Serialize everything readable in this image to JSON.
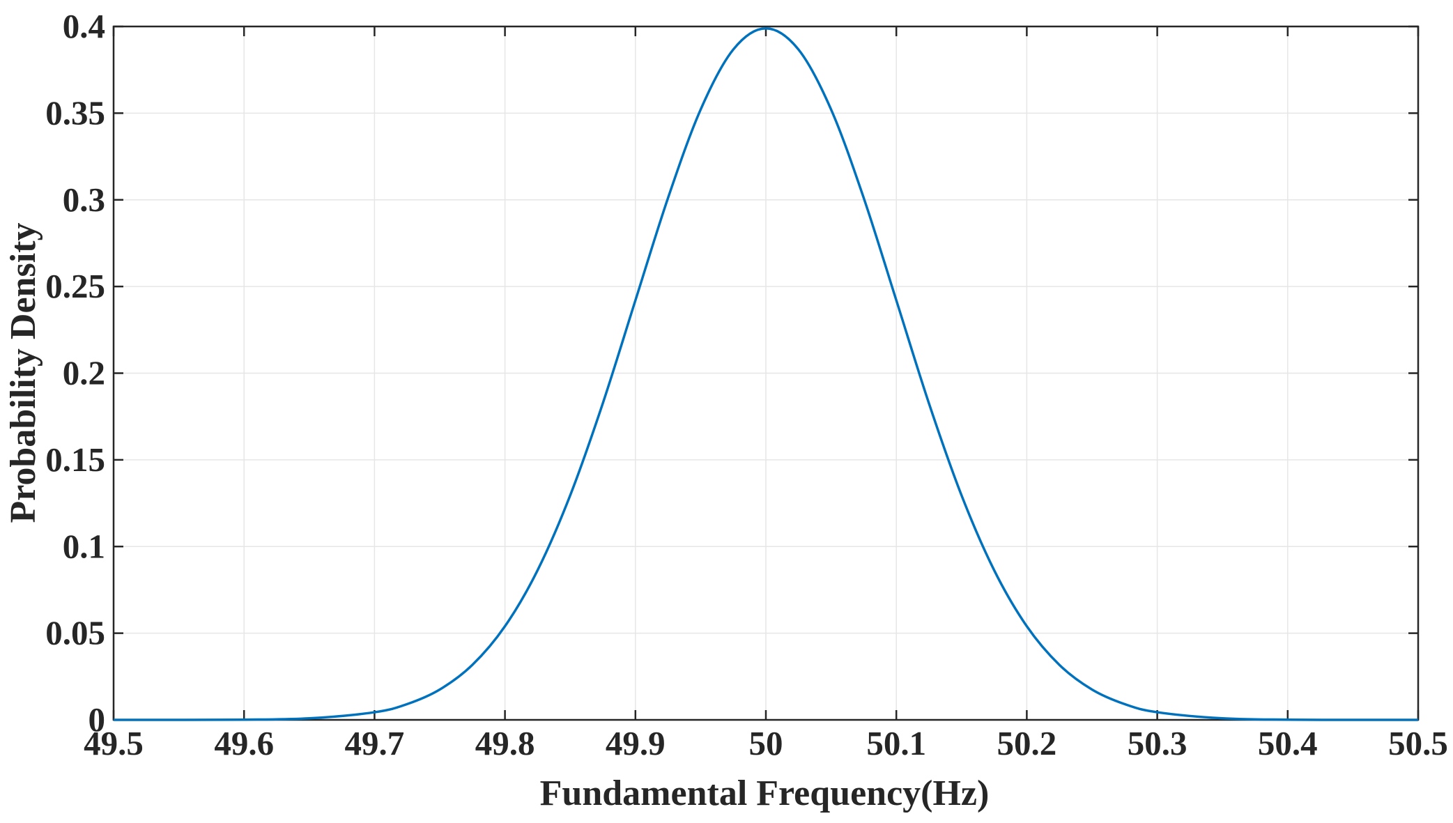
{
  "chart_data": {
    "type": "line",
    "title": "",
    "xlabel": "Fundamental Frequency(Hz)",
    "ylabel": "Probability Density",
    "xlim": [
      49.5,
      50.5
    ],
    "ylim": [
      0,
      0.4
    ],
    "xticks": [
      49.5,
      49.6,
      49.7,
      49.8,
      49.9,
      50,
      50.1,
      50.2,
      50.3,
      50.4,
      50.5
    ],
    "xtick_labels": [
      "49.5",
      "49.6",
      "49.7",
      "49.8",
      "49.9",
      "50",
      "50.1",
      "50.2",
      "50.3",
      "50.4",
      "50.5"
    ],
    "yticks": [
      0,
      0.05,
      0.1,
      0.15,
      0.2,
      0.25,
      0.3,
      0.35,
      0.4
    ],
    "ytick_labels": [
      "0",
      "0.05",
      "0.1",
      "0.15",
      "0.2",
      "0.25",
      "0.3",
      "0.35",
      "0.4"
    ],
    "grid": true,
    "line_color": "#0072BD",
    "series": [
      {
        "x": [
          49.5,
          49.55,
          49.6,
          49.65,
          49.7,
          49.725,
          49.75,
          49.775,
          49.8,
          49.825,
          49.85,
          49.875,
          49.9,
          49.925,
          49.95,
          49.975,
          50,
          50.025,
          50.05,
          50.075,
          50.1,
          50.125,
          50.15,
          50.175,
          50.2,
          50.225,
          50.25,
          50.275,
          50.3,
          50.35,
          50.4,
          50.45,
          50.5
        ],
        "y": [
          0.0,
          0.0,
          0.0001,
          0.0009,
          0.0044,
          0.0091,
          0.0175,
          0.0317,
          0.054,
          0.0863,
          0.1295,
          0.1826,
          0.242,
          0.3011,
          0.3521,
          0.3867,
          0.3989,
          0.3867,
          0.3521,
          0.3011,
          0.242,
          0.1826,
          0.1295,
          0.0863,
          0.054,
          0.0317,
          0.0175,
          0.0091,
          0.0044,
          0.0009,
          0.0001,
          0.0,
          0.0
        ]
      }
    ]
  }
}
